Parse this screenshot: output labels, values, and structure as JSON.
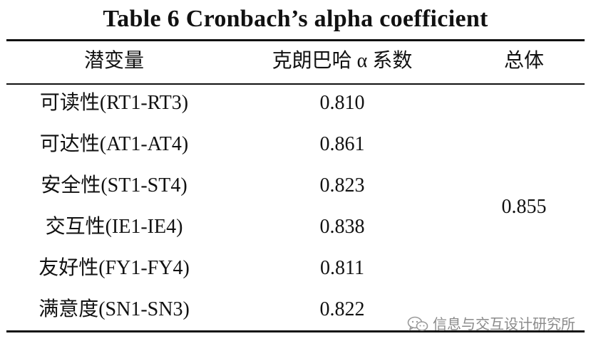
{
  "title": "Table 6    Cronbach’s alpha coefficient",
  "headers": {
    "variable": "潜变量",
    "alpha": "克朗巴哈 α 系数",
    "overall": "总体"
  },
  "rows": [
    {
      "variable": "可读性(RT1-RT3)",
      "alpha": "0.810"
    },
    {
      "variable": "可达性(AT1-AT4)",
      "alpha": "0.861"
    },
    {
      "variable": "安全性(ST1-ST4)",
      "alpha": "0.823"
    },
    {
      "variable": "交互性(IE1-IE4)",
      "alpha": "0.838"
    },
    {
      "variable": "友好性(FY1-FY4)",
      "alpha": "0.811"
    },
    {
      "variable": "满意度(SN1-SN3)",
      "alpha": "0.822"
    }
  ],
  "overall_value": "0.855",
  "watermark": {
    "text": "信息与交互设计研究所",
    "icon": "wechat-icon"
  }
}
